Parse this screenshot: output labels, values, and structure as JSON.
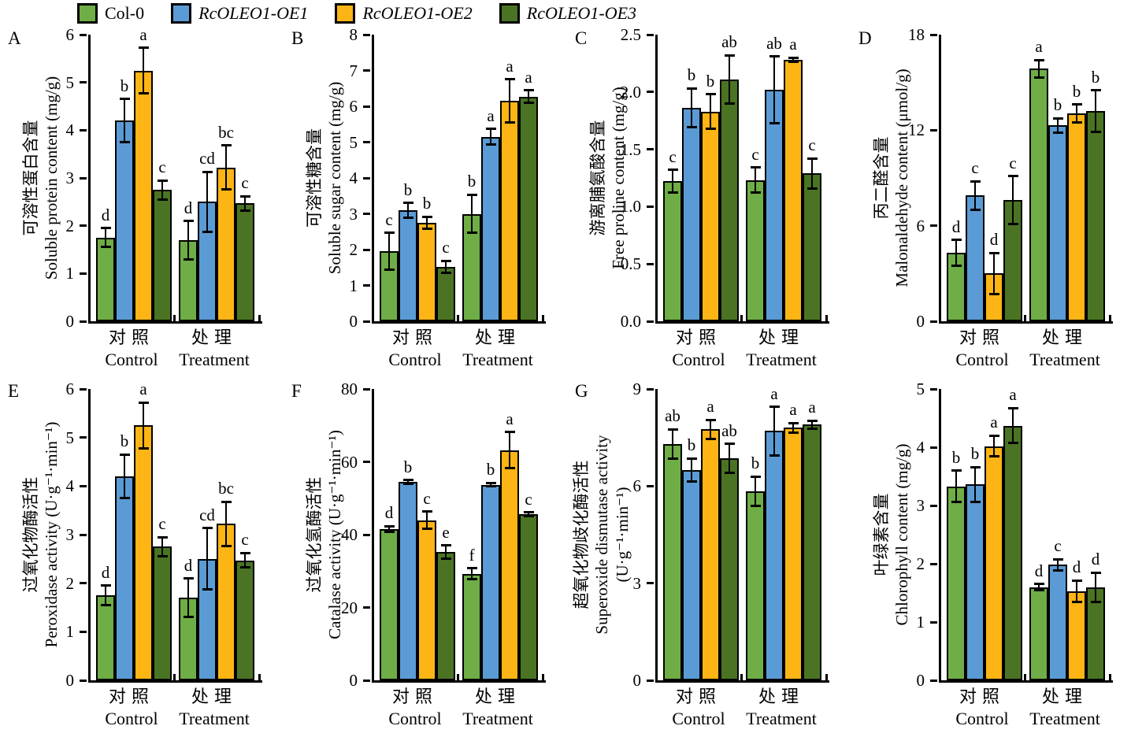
{
  "legend": {
    "items": [
      {
        "label": "Col-0",
        "color": "#6FAD46",
        "italic": false
      },
      {
        "label": "RcOLEO1-OE1",
        "color": "#5B9BD5",
        "italic": true
      },
      {
        "label": "RcOLEO1-OE2",
        "color": "#FDB515",
        "italic": true
      },
      {
        "label": "RcOLEO1-OE3",
        "color": "#4A7423",
        "italic": true
      }
    ]
  },
  "chart_data": [
    {
      "panel": "A",
      "type": "bar",
      "ylabel_lines": [
        "可溶性蛋白含量",
        "Soluble protein content (mg/g)"
      ],
      "ylim": [
        0,
        6
      ],
      "yticks": [
        "0",
        "1",
        "2",
        "3",
        "4",
        "5",
        "6"
      ],
      "categories": [
        {
          "zh": "对照",
          "en": "Control"
        },
        {
          "zh": "处理",
          "en": "Treatment"
        }
      ],
      "series": [
        {
          "name": "Col-0",
          "values": [
            1.75,
            1.7
          ],
          "errors": [
            0.2,
            0.4
          ],
          "letters": [
            "d",
            "d"
          ]
        },
        {
          "name": "RcOLEO1-OE1",
          "values": [
            4.2,
            2.5
          ],
          "errors": [
            0.45,
            0.63
          ],
          "letters": [
            "b",
            "cd"
          ]
        },
        {
          "name": "RcOLEO1-OE2",
          "values": [
            5.25,
            3.22
          ],
          "errors": [
            0.47,
            0.46
          ],
          "letters": [
            "a",
            "bc"
          ]
        },
        {
          "name": "RcOLEO1-OE3",
          "values": [
            2.75,
            2.47
          ],
          "errors": [
            0.2,
            0.15
          ],
          "letters": [
            "c",
            "c"
          ]
        }
      ]
    },
    {
      "panel": "B",
      "type": "bar",
      "ylabel_lines": [
        "可溶性糖含量",
        "Soluble sugar content (mg/g)"
      ],
      "ylim": [
        0,
        8
      ],
      "yticks": [
        "0",
        "1",
        "2",
        "3",
        "4",
        "5",
        "6",
        "7",
        "8"
      ],
      "categories": [
        {
          "zh": "对照",
          "en": "Control"
        },
        {
          "zh": "处理",
          "en": "Treatment"
        }
      ],
      "series": [
        {
          "name": "Col-0",
          "values": [
            1.95,
            3.0
          ],
          "errors": [
            0.52,
            0.53
          ],
          "letters": [
            "c",
            "b"
          ]
        },
        {
          "name": "RcOLEO1-OE1",
          "values": [
            3.1,
            5.15
          ],
          "errors": [
            0.2,
            0.22
          ],
          "letters": [
            "b",
            "a"
          ]
        },
        {
          "name": "RcOLEO1-OE2",
          "values": [
            2.75,
            6.15
          ],
          "errors": [
            0.17,
            0.6
          ],
          "letters": [
            "b",
            "a"
          ]
        },
        {
          "name": "RcOLEO1-OE3",
          "values": [
            1.52,
            6.27
          ],
          "errors": [
            0.17,
            0.17
          ],
          "letters": [
            "c",
            "a"
          ]
        }
      ]
    },
    {
      "panel": "C",
      "type": "bar",
      "ylabel_lines": [
        "游离脯氨酸含量",
        "Free proline content (mg/g)"
      ],
      "ylim": [
        0,
        2.5
      ],
      "yticks": [
        "0.0",
        "0.5",
        "1.0",
        "1.5",
        "2.0",
        "2.5"
      ],
      "categories": [
        {
          "zh": "对照",
          "en": "Control"
        },
        {
          "zh": "处理",
          "en": "Treatment"
        }
      ],
      "series": [
        {
          "name": "Col-0",
          "values": [
            1.22,
            1.23
          ],
          "errors": [
            0.1,
            0.11
          ],
          "letters": [
            "c",
            "c"
          ]
        },
        {
          "name": "RcOLEO1-OE1",
          "values": [
            1.86,
            2.02
          ],
          "errors": [
            0.17,
            0.29
          ],
          "letters": [
            "b",
            "ab"
          ]
        },
        {
          "name": "RcOLEO1-OE2",
          "values": [
            1.83,
            2.28
          ],
          "errors": [
            0.15,
            0.02
          ],
          "letters": [
            "b",
            "a"
          ]
        },
        {
          "name": "RcOLEO1-OE3",
          "values": [
            2.11,
            1.29
          ],
          "errors": [
            0.21,
            0.13
          ],
          "letters": [
            "ab",
            "c"
          ]
        }
      ]
    },
    {
      "panel": "D",
      "type": "bar",
      "ylabel_lines": [
        "丙二醛含量",
        "Malonaldehyde content (μmol/g)"
      ],
      "ylim": [
        0,
        18
      ],
      "yticks": [
        "0",
        "6",
        "12",
        "18"
      ],
      "categories": [
        {
          "zh": "对照",
          "en": "Control"
        },
        {
          "zh": "处理",
          "en": "Treatment"
        }
      ],
      "series": [
        {
          "name": "Col-0",
          "values": [
            4.3,
            15.85
          ],
          "errors": [
            0.8,
            0.55
          ],
          "letters": [
            "d",
            "a"
          ]
        },
        {
          "name": "RcOLEO1-OE1",
          "values": [
            7.9,
            12.3
          ],
          "errors": [
            0.9,
            0.45
          ],
          "letters": [
            "c",
            "b"
          ]
        },
        {
          "name": "RcOLEO1-OE2",
          "values": [
            3.0,
            13.05
          ],
          "errors": [
            1.3,
            0.55
          ],
          "letters": [
            "d",
            "b"
          ]
        },
        {
          "name": "RcOLEO1-OE3",
          "values": [
            7.6,
            13.2
          ],
          "errors": [
            1.5,
            1.3
          ],
          "letters": [
            "c",
            "b"
          ]
        }
      ]
    },
    {
      "panel": "E",
      "type": "bar",
      "ylabel_lines": [
        "过氧化物酶活性",
        "Peroxidase activity (U·g⁻¹·min⁻¹)"
      ],
      "ylim": [
        0,
        6
      ],
      "yticks": [
        "0",
        "1",
        "2",
        "3",
        "4",
        "5",
        "6"
      ],
      "categories": [
        {
          "zh": "对照",
          "en": "Control"
        },
        {
          "zh": "处理",
          "en": "Treatment"
        }
      ],
      "series": [
        {
          "name": "Col-0",
          "values": [
            1.75,
            1.7
          ],
          "errors": [
            0.2,
            0.4
          ],
          "letters": [
            "d",
            "d"
          ]
        },
        {
          "name": "RcOLEO1-OE1",
          "values": [
            4.2,
            2.5
          ],
          "errors": [
            0.45,
            0.63
          ],
          "letters": [
            "b",
            "cd"
          ]
        },
        {
          "name": "RcOLEO1-OE2",
          "values": [
            5.25,
            3.22
          ],
          "errors": [
            0.47,
            0.46
          ],
          "letters": [
            "a",
            "bc"
          ]
        },
        {
          "name": "RcOLEO1-OE3",
          "values": [
            2.75,
            2.47
          ],
          "errors": [
            0.2,
            0.15
          ],
          "letters": [
            "c",
            "c"
          ]
        }
      ]
    },
    {
      "panel": "F",
      "type": "bar",
      "ylabel_lines": [
        "过氧化氢酶活性",
        "Catalase activity (U·g⁻¹·min⁻¹)"
      ],
      "ylim": [
        0,
        80
      ],
      "yticks": [
        "0",
        "20",
        "40",
        "60",
        "80"
      ],
      "categories": [
        {
          "zh": "对照",
          "en": "Control"
        },
        {
          "zh": "处理",
          "en": "Treatment"
        }
      ],
      "series": [
        {
          "name": "Col-0",
          "values": [
            41.5,
            29.3
          ],
          "errors": [
            0.8,
            1.5
          ],
          "letters": [
            "d",
            "f"
          ]
        },
        {
          "name": "RcOLEO1-OE1",
          "values": [
            54.5,
            53.7
          ],
          "errors": [
            0.5,
            0.5
          ],
          "letters": [
            "b",
            "b"
          ]
        },
        {
          "name": "RcOLEO1-OE2",
          "values": [
            44.0,
            63.2
          ],
          "errors": [
            2.3,
            5.0
          ],
          "letters": [
            "c",
            "a"
          ]
        },
        {
          "name": "RcOLEO1-OE3",
          "values": [
            35.2,
            45.6
          ],
          "errors": [
            1.8,
            0.5
          ],
          "letters": [
            "e",
            "c"
          ]
        }
      ]
    },
    {
      "panel": "G",
      "type": "bar",
      "ylabel_lines": [
        "超氧化物歧化酶活性",
        "Superoxide dismutase activity",
        "(U·g⁻¹·min⁻¹)"
      ],
      "ylim": [
        0,
        9
      ],
      "yticks": [
        "0",
        "3",
        "6",
        "9"
      ],
      "categories": [
        {
          "zh": "对照",
          "en": "Control"
        },
        {
          "zh": "处理",
          "en": "Treatment"
        }
      ],
      "series": [
        {
          "name": "Col-0",
          "values": [
            7.3,
            5.85
          ],
          "errors": [
            0.45,
            0.45
          ],
          "letters": [
            "ab",
            "b"
          ]
        },
        {
          "name": "RcOLEO1-OE1",
          "values": [
            6.5,
            7.7
          ],
          "errors": [
            0.35,
            0.75
          ],
          "letters": [
            "b",
            "a"
          ]
        },
        {
          "name": "RcOLEO1-OE2",
          "values": [
            7.75,
            7.8
          ],
          "errors": [
            0.3,
            0.15
          ],
          "letters": [
            "a",
            "a"
          ]
        },
        {
          "name": "RcOLEO1-OE3",
          "values": [
            6.85,
            7.9
          ],
          "errors": [
            0.45,
            0.12
          ],
          "letters": [
            "ab",
            "a"
          ]
        }
      ]
    },
    {
      "panel": "",
      "type": "bar",
      "ylabel_lines": [
        "叶绿素含量",
        "Chlorophyll content (mg/g)"
      ],
      "ylim": [
        0,
        5
      ],
      "yticks": [
        "0",
        "1",
        "2",
        "3",
        "4",
        "5"
      ],
      "categories": [
        {
          "zh": "对照",
          "en": "Control"
        },
        {
          "zh": "处理",
          "en": "Treatment"
        }
      ],
      "series": [
        {
          "name": "Col-0",
          "values": [
            3.33,
            1.6
          ],
          "errors": [
            0.27,
            0.05
          ],
          "letters": [
            "b",
            "d"
          ]
        },
        {
          "name": "RcOLEO1-OE1",
          "values": [
            3.36,
            1.98
          ],
          "errors": [
            0.3,
            0.1
          ],
          "letters": [
            "b",
            "c"
          ]
        },
        {
          "name": "RcOLEO1-OE2",
          "values": [
            4.02,
            1.53
          ],
          "errors": [
            0.18,
            0.18
          ],
          "letters": [
            "a",
            "d"
          ]
        },
        {
          "name": "RcOLEO1-OE3",
          "values": [
            4.37,
            1.6
          ],
          "errors": [
            0.3,
            0.25
          ],
          "letters": [
            "a",
            "d"
          ]
        }
      ]
    }
  ]
}
